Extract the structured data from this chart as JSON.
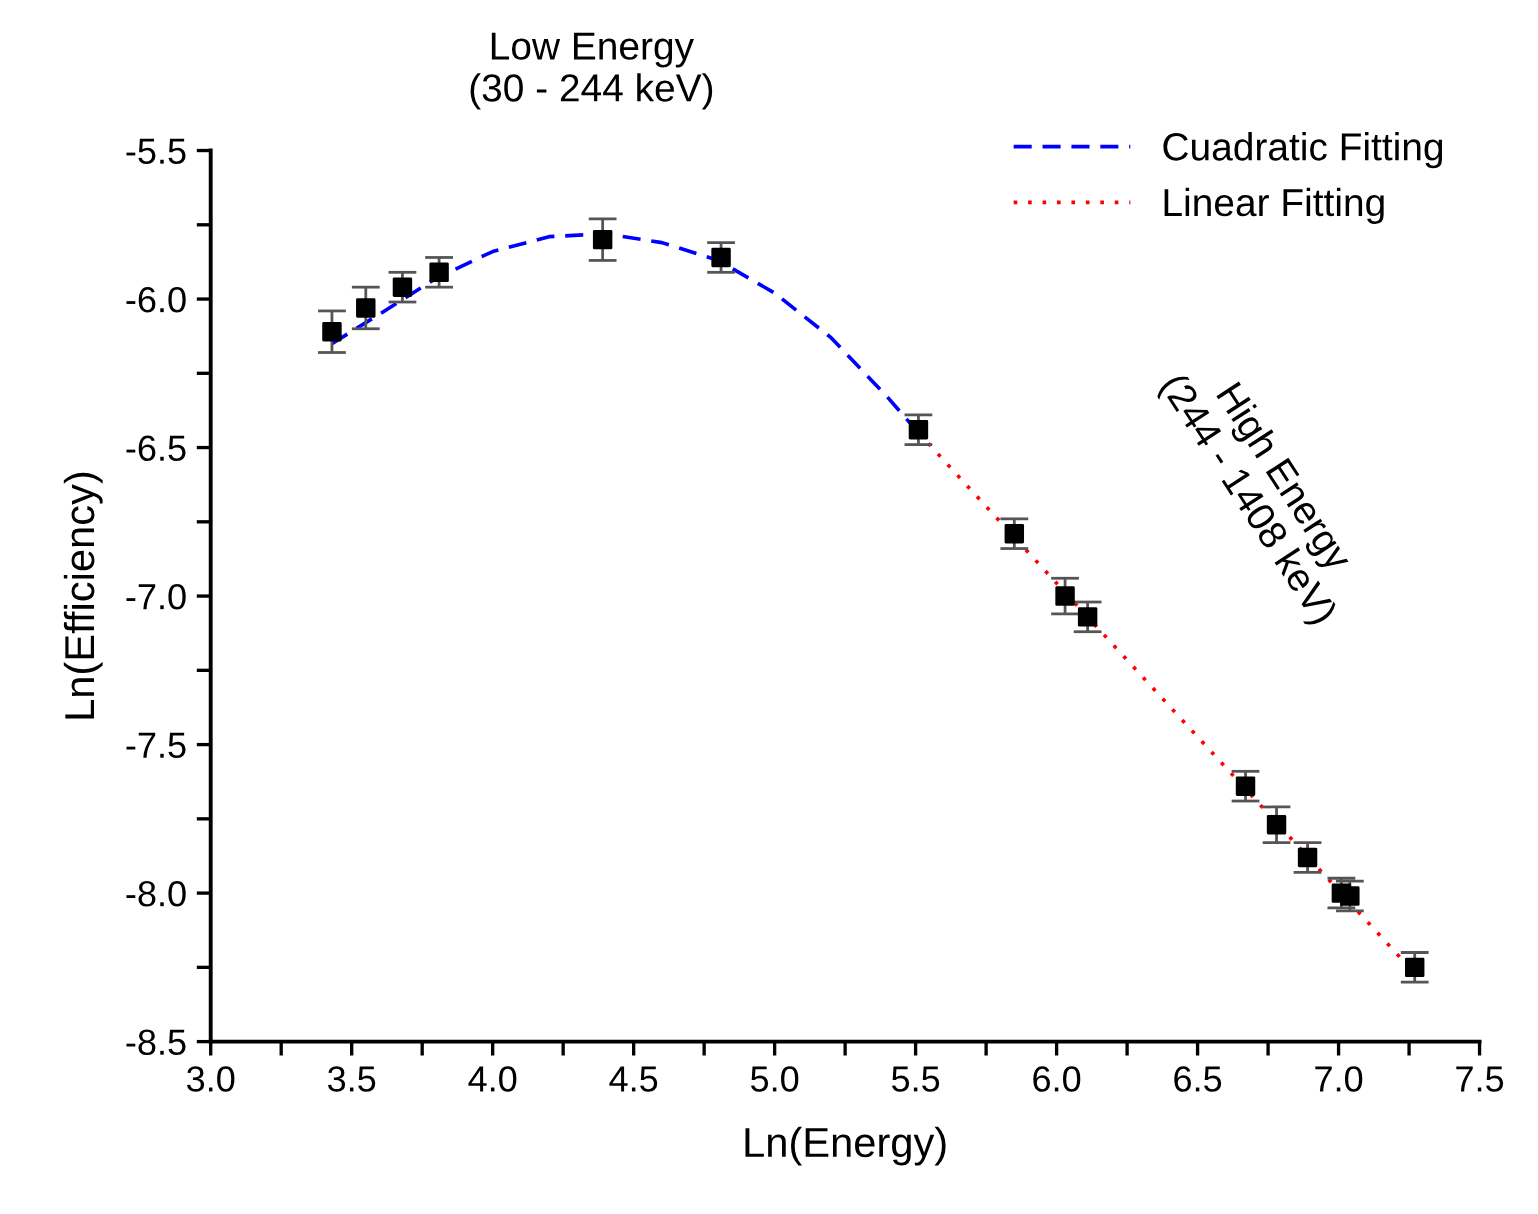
{
  "chart_data": {
    "type": "scatter",
    "xlabel": "Ln(Energy)",
    "ylabel": "Ln(Efficiency)",
    "annotations": [
      "Low Energy\n(30 - 244 keV)",
      "High Energy\n(244 - 1408 keV)"
    ],
    "xlim": [
      3.0,
      7.5
    ],
    "ylim": [
      -8.5,
      -5.5
    ],
    "xticks": [
      {
        "value": 3.0,
        "label": "3.0"
      },
      {
        "value": 3.25,
        "label": null
      },
      {
        "value": 3.5,
        "label": "3.5"
      },
      {
        "value": 3.75,
        "label": null
      },
      {
        "value": 4.0,
        "label": "4.0"
      },
      {
        "value": 4.25,
        "label": null
      },
      {
        "value": 4.5,
        "label": "4.5"
      },
      {
        "value": 4.75,
        "label": null
      },
      {
        "value": 5.0,
        "label": "5.0"
      },
      {
        "value": 5.25,
        "label": null
      },
      {
        "value": 5.5,
        "label": "5.5"
      },
      {
        "value": 5.75,
        "label": null
      },
      {
        "value": 6.0,
        "label": "6.0"
      },
      {
        "value": 6.25,
        "label": null
      },
      {
        "value": 6.5,
        "label": "6.5"
      },
      {
        "value": 6.75,
        "label": null
      },
      {
        "value": 7.0,
        "label": "7.0"
      },
      {
        "value": 7.25,
        "label": null
      },
      {
        "value": 7.5,
        "label": "7.5"
      }
    ],
    "yticks": [
      {
        "value": -8.5,
        "label": "-8.5"
      },
      {
        "value": -8.25,
        "label": null
      },
      {
        "value": -8.0,
        "label": "-8.0"
      },
      {
        "value": -7.75,
        "label": null
      },
      {
        "value": -7.5,
        "label": "-7.5"
      },
      {
        "value": -7.25,
        "label": null
      },
      {
        "value": -7.0,
        "label": "-7.0"
      },
      {
        "value": -6.75,
        "label": null
      },
      {
        "value": -6.5,
        "label": "-6.5"
      },
      {
        "value": -6.25,
        "label": null
      },
      {
        "value": -6.0,
        "label": "-6.0"
      },
      {
        "value": -5.75,
        "label": null
      },
      {
        "value": -5.5,
        "label": "-5.5"
      }
    ],
    "grid": false,
    "legend": "top right",
    "series": [
      {
        "type": "line",
        "name": "Cuadratic Fitting",
        "color": "#0000ff",
        "line_style": "dashed",
        "marker": "none",
        "x": [
          3.43,
          3.6,
          3.8,
          4.0,
          4.2,
          4.4,
          4.6,
          4.8,
          5.0,
          5.2,
          5.4,
          5.51
        ],
        "values": [
          -6.15,
          -6.05,
          -5.93,
          -5.84,
          -5.79,
          -5.78,
          -5.81,
          -5.87,
          -5.98,
          -6.13,
          -6.33,
          -6.45
        ]
      },
      {
        "type": "line",
        "name": "Linear Fitting",
        "color": "#ff0000",
        "line_style": "dotted",
        "marker": "none",
        "x": [
          5.51,
          7.27
        ],
        "values": [
          -6.45,
          -8.27
        ]
      },
      {
        "type": "scatter",
        "color": "#000000",
        "marker": "square",
        "x": [
          3.43,
          3.55,
          3.68,
          3.81,
          4.39,
          4.81,
          5.51,
          5.85,
          6.03,
          6.11,
          6.67,
          6.78,
          6.89,
          7.01,
          7.04,
          7.27
        ],
        "values": [
          -6.11,
          -6.03,
          -5.96,
          -5.91,
          -5.8,
          -5.86,
          -6.44,
          -6.79,
          -7.0,
          -7.07,
          -7.64,
          -7.77,
          -7.88,
          -8.0,
          -8.01,
          -8.25
        ],
        "errors": [
          0.07,
          0.07,
          0.05,
          0.05,
          0.07,
          0.05,
          0.05,
          0.05,
          0.06,
          0.05,
          0.05,
          0.06,
          0.05,
          0.05,
          0.05,
          0.05
        ]
      }
    ]
  }
}
